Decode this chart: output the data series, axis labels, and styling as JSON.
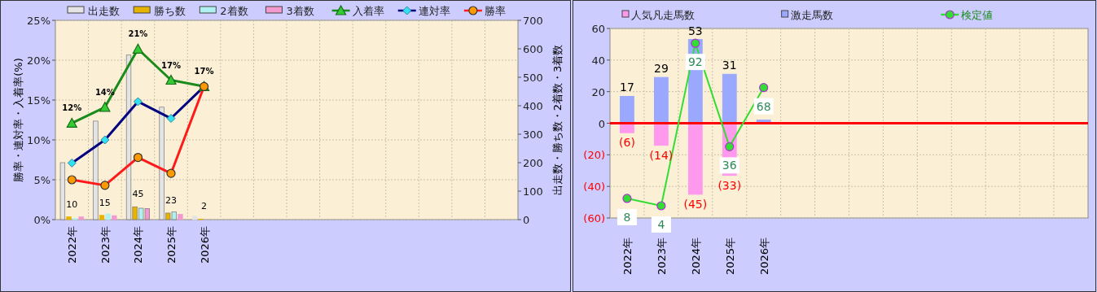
{
  "chart_data": [
    {
      "type": "bar",
      "categories": [
        "2022年",
        "2023年",
        "2024年",
        "2025年",
        "2026年",
        null,
        null,
        null,
        null,
        null,
        null,
        null,
        null,
        null
      ],
      "ylabel": "勝率・連対率・入着率(%)",
      "y2label": "出走数・勝ち数・2着数・3着数",
      "ylim": [
        0,
        25
      ],
      "yticks": [
        {
          "value": 0,
          "label": "0%"
        },
        {
          "value": 5,
          "label": "5%"
        },
        {
          "value": 10,
          "label": "10%"
        },
        {
          "value": 15,
          "label": "15%"
        },
        {
          "value": 20,
          "label": "20%"
        },
        {
          "value": 25,
          "label": "25%"
        }
      ],
      "y2lim": [
        0,
        700
      ],
      "y2ticks": [
        0,
        100,
        200,
        300,
        400,
        500,
        600,
        700
      ],
      "grid": true,
      "legend": "top",
      "series": [
        {
          "name": "出走数",
          "axis": "y2",
          "color": "#e4e4e4",
          "values": [
            200,
            346,
            578,
            395,
            12,
            null,
            null,
            null,
            null,
            null,
            null,
            null,
            null,
            null
          ]
        },
        {
          "name": "勝ち数",
          "axis": "y2",
          "color": "#e6b400",
          "values": [
            10,
            15,
            45,
            23,
            2,
            null,
            null,
            null,
            null,
            null,
            null,
            null,
            null,
            null
          ],
          "value_labels": [
            "10",
            "15",
            "45",
            "23",
            "2",
            null,
            null,
            null,
            null,
            null,
            null,
            null,
            null,
            null
          ]
        },
        {
          "name": "2着数",
          "axis": "y2",
          "color": "#b0f0f0",
          "values": [
            4,
            20,
            40,
            27,
            0,
            null,
            null,
            null,
            null,
            null,
            null,
            null,
            null,
            null
          ]
        },
        {
          "name": "3着数",
          "axis": "y2",
          "color": "#f29ad0",
          "values": [
            10,
            14,
            39,
            19,
            0,
            null,
            null,
            null,
            null,
            null,
            null,
            null,
            null,
            null
          ]
        },
        {
          "name": "入着率",
          "type": "line",
          "marker": "triangle",
          "color": "#1a8a1a",
          "values": [
            12.1,
            14.1,
            21.4,
            17.5,
            16.7,
            null,
            null,
            null,
            null,
            null,
            null,
            null,
            null,
            null
          ],
          "value_labels": [
            "12%",
            "14%",
            "21%",
            "17%",
            "17%",
            null,
            null,
            null,
            null,
            null,
            null,
            null,
            null,
            null
          ]
        },
        {
          "name": "連対率",
          "type": "line",
          "marker": "diamond",
          "color": "#000080",
          "values": [
            7.1,
            10.0,
            14.8,
            12.7,
            16.7,
            null,
            null,
            null,
            null,
            null,
            null,
            null,
            null,
            null
          ]
        },
        {
          "name": "勝率",
          "type": "line",
          "marker": "circle",
          "color": "#ff1a1a",
          "values": [
            5.0,
            4.3,
            7.8,
            5.8,
            16.7,
            null,
            null,
            null,
            null,
            null,
            null,
            null,
            null,
            null
          ]
        }
      ]
    },
    {
      "type": "bar",
      "stacked": true,
      "y2lim": [
        -2.6,
        100
      ],
      "categories": [
        "2022年",
        "2023年",
        "2024年",
        "2025年",
        "2026年",
        null,
        null,
        null,
        null,
        null,
        null,
        null,
        null,
        null
      ],
      "ylim": [
        -60,
        60
      ],
      "yticks": [
        {
          "value": -60,
          "label": "(60)"
        },
        {
          "value": -40,
          "label": "(40)"
        },
        {
          "value": -20,
          "label": "(20)"
        },
        0,
        20,
        40,
        60
      ],
      "grid": true,
      "legend": "top",
      "ref_lines": [
        {
          "axis": "y",
          "value": 0,
          "color": "#ff0000"
        }
      ],
      "series": [
        {
          "name": "人気凡走馬数",
          "color": "#ff99ee",
          "values": [
            -6,
            -14,
            -45,
            -33,
            null,
            null,
            null,
            null,
            null,
            null,
            null,
            null,
            null,
            null
          ],
          "value_labels": [
            "(6)",
            "(14)",
            "(45)",
            "(33)",
            null,
            null,
            null,
            null,
            null,
            null,
            null,
            null,
            null,
            null
          ]
        },
        {
          "name": "激走馬数",
          "color": "#9aa8ff",
          "values": [
            17,
            29,
            53,
            31,
            2,
            null,
            null,
            null,
            null,
            null,
            null,
            null,
            null,
            null
          ],
          "value_labels": [
            "17",
            "29",
            "53",
            "31",
            null,
            null,
            null,
            null,
            null,
            null,
            null,
            null,
            null,
            null
          ]
        },
        {
          "name": "検定値",
          "type": "line",
          "axis": "y2",
          "marker": "circle",
          "color": "#33dd33",
          "values": [
            8,
            4,
            92,
            36,
            68,
            null,
            null,
            null,
            null,
            null,
            null,
            null,
            null,
            null
          ],
          "value_labels": [
            "8",
            "4",
            "92",
            "36",
            "68",
            null,
            null,
            null,
            null,
            null,
            null,
            null,
            null,
            null
          ]
        }
      ]
    }
  ]
}
